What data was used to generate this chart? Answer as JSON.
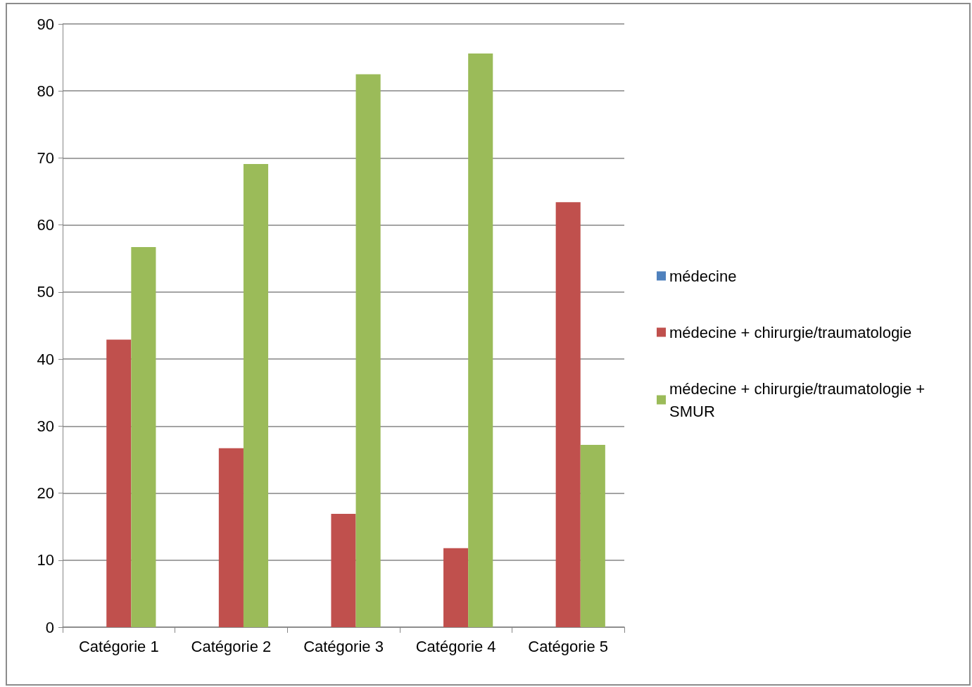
{
  "chart_data": {
    "type": "bar",
    "categories": [
      "Catégorie 1",
      "Catégorie 2",
      "Catégorie 3",
      "Catégorie 4",
      "Catégorie 5"
    ],
    "series": [
      {
        "name": "médecine",
        "color": "#4f81bd",
        "values": [
          null,
          null,
          null,
          null,
          null
        ]
      },
      {
        "name": "médecine + chirurgie/traumatologie",
        "color": "#c0504d",
        "values": [
          42.9,
          26.7,
          16.9,
          11.8,
          63.4
        ]
      },
      {
        "name": "médecine + chirurgie/traumatologie + SMUR",
        "color": "#9bbb59",
        "values": [
          56.7,
          69.1,
          82.5,
          85.6,
          27.2
        ]
      }
    ],
    "ylim": [
      0,
      90
    ],
    "yticks": [
      0,
      10,
      20,
      30,
      40,
      50,
      60,
      70,
      80,
      90
    ],
    "grid": "y",
    "legend": "right"
  }
}
